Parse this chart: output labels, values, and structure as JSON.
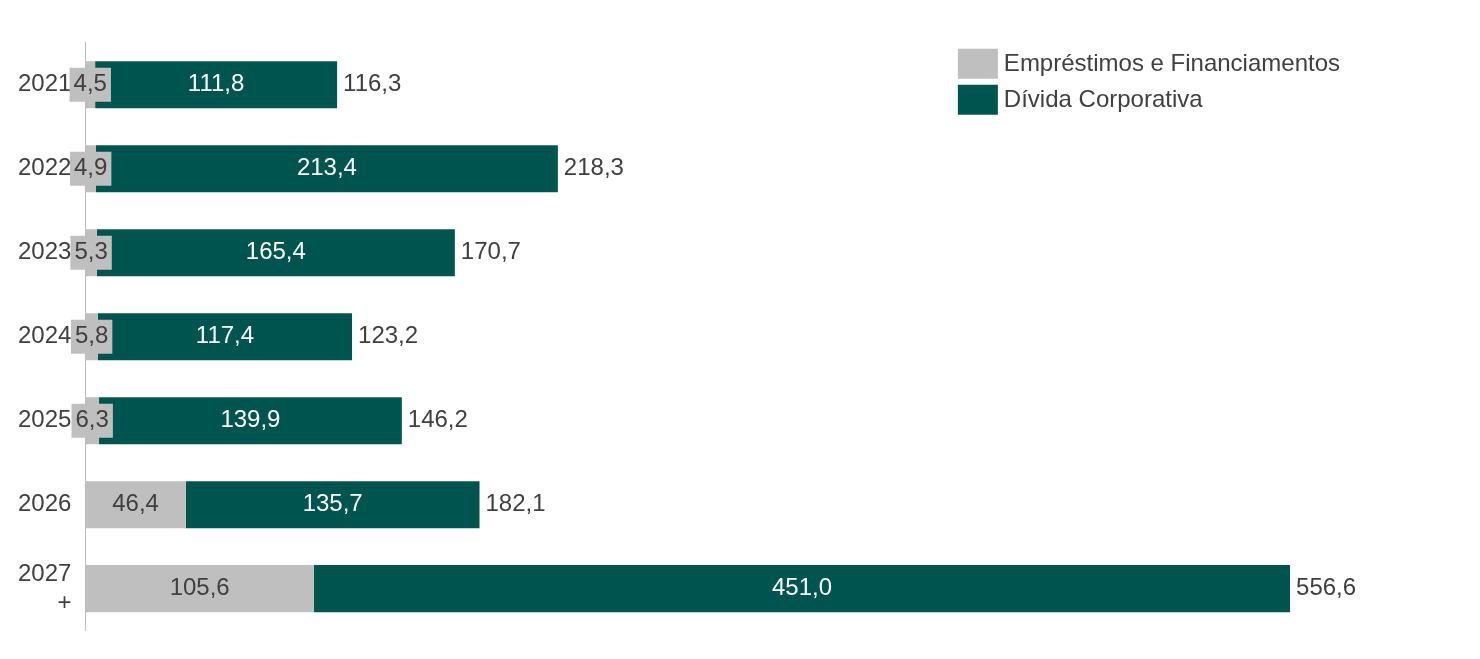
{
  "chart_data": {
    "type": "bar",
    "orientation": "horizontal",
    "stacked": true,
    "categories": [
      "2021",
      "2022",
      "2023",
      "2024",
      "2025",
      "2026",
      "2027 +"
    ],
    "series": [
      {
        "name": "Empréstimos e Financiamentos",
        "color": "#bfbfbf",
        "values": [
          4.5,
          4.9,
          5.3,
          5.8,
          6.3,
          46.4,
          105.6
        ],
        "value_labels": [
          "4,5",
          "4,9",
          "5,3",
          "5,8",
          "6,3",
          "46,4",
          "105,6"
        ]
      },
      {
        "name": "Dívida Corporativa",
        "color": "#005450",
        "values": [
          111.8,
          213.4,
          165.4,
          117.4,
          139.9,
          135.7,
          451.0
        ],
        "value_labels": [
          "111,8",
          "213,4",
          "165,4",
          "117,4",
          "139,9",
          "135,7",
          "451,0"
        ]
      }
    ],
    "totals": [
      "116,3",
      "218,3",
      "170,7",
      "123,2",
      "146,2",
      "182,1",
      "556,6"
    ],
    "legend": "top right",
    "grid": false
  }
}
